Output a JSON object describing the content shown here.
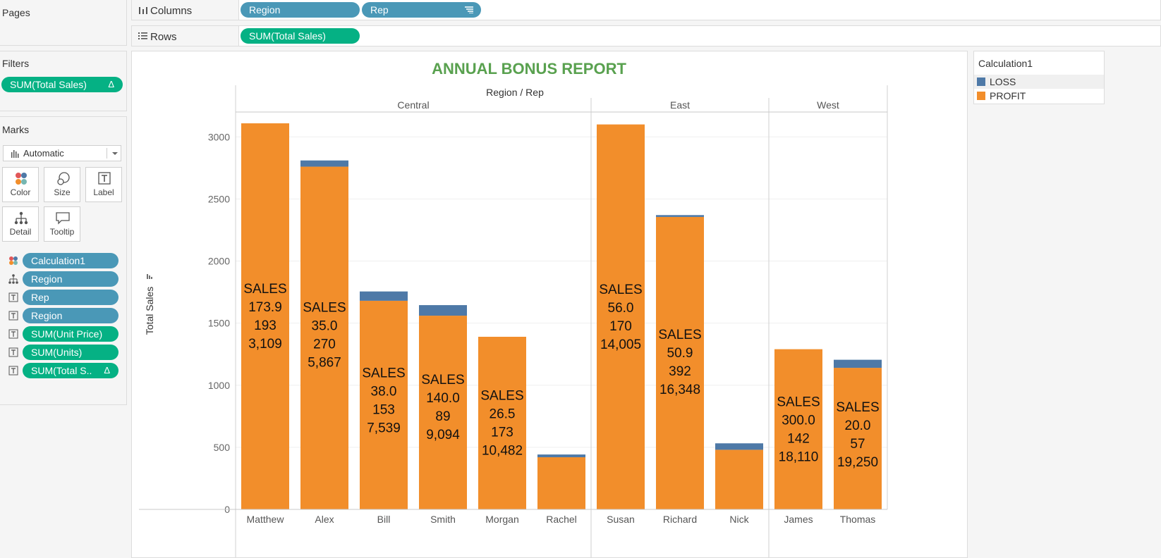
{
  "pages_panel": {
    "title": "Pages"
  },
  "columns_shelf": {
    "label": "Columns",
    "pills": [
      {
        "label": "Region",
        "kind": "dimension"
      },
      {
        "label": "Rep",
        "kind": "dimension",
        "icon": "sort-icon"
      }
    ]
  },
  "rows_shelf": {
    "label": "Rows",
    "pills": [
      {
        "label": "SUM(Total Sales)",
        "kind": "measure"
      }
    ]
  },
  "filters_panel": {
    "title": "Filters",
    "pills": [
      {
        "label": "SUM(Total Sales)",
        "badge": "Δ"
      }
    ]
  },
  "marks_panel": {
    "title": "Marks",
    "mark_type": "Automatic",
    "buttons": [
      {
        "label": "Color",
        "icon": "color-dots-icon"
      },
      {
        "label": "Size",
        "icon": "size-circles-icon"
      },
      {
        "label": "Label",
        "icon": "text-label-icon"
      },
      {
        "label": "Detail",
        "icon": "detail-hierarchy-icon"
      },
      {
        "label": "Tooltip",
        "icon": "tooltip-bubble-icon"
      }
    ],
    "fields": [
      {
        "label": "Calculation1",
        "kind": "dimension",
        "icon": "color-dots-icon"
      },
      {
        "label": "Region",
        "kind": "dimension",
        "icon": "detail-hierarchy-icon"
      },
      {
        "label": "Rep",
        "kind": "dimension",
        "icon": "text-label-icon"
      },
      {
        "label": "Region",
        "kind": "dimension",
        "icon": "text-label-icon"
      },
      {
        "label": "SUM(Unit Price)",
        "kind": "measure",
        "icon": "text-label-icon"
      },
      {
        "label": "SUM(Units)",
        "kind": "measure",
        "icon": "text-label-icon"
      },
      {
        "label": "SUM(Total S..",
        "kind": "measure",
        "icon": "text-label-icon",
        "badge": "Δ"
      }
    ]
  },
  "legend": {
    "title": "Calculation1",
    "items": [
      {
        "label": "LOSS",
        "color": "#4e79a7"
      },
      {
        "label": "PROFIT",
        "color": "#f28e2b"
      }
    ]
  },
  "colors": {
    "profit": "#f28e2b",
    "loss": "#4e79a7",
    "title": "#59a14f",
    "dimension_pill": "#4a98b7",
    "measure_pill": "#05b184"
  },
  "chart_data": {
    "type": "bar",
    "stacked": true,
    "title": "ANNUAL BONUS REPORT",
    "column_header": "Region / Rep",
    "ylabel": "Total Sales",
    "ylim": [
      0,
      3200
    ],
    "yticks": [
      0,
      500,
      1000,
      1500,
      2000,
      2500,
      3000
    ],
    "grid": true,
    "regions": [
      {
        "name": "Central",
        "reps": [
          "Matthew",
          "Alex",
          "Bill",
          "Smith",
          "Morgan",
          "Rachel"
        ]
      },
      {
        "name": "East",
        "reps": [
          "Susan",
          "Richard",
          "Nick"
        ]
      },
      {
        "name": "West",
        "reps": [
          "James",
          "Thomas"
        ]
      }
    ],
    "categories": [
      "Matthew",
      "Alex",
      "Bill",
      "Smith",
      "Morgan",
      "Rachel",
      "Susan",
      "Richard",
      "Nick",
      "James",
      "Thomas"
    ],
    "series": [
      {
        "name": "PROFIT",
        "values": [
          3109,
          2760,
          1680,
          1560,
          1390,
          420,
          3100,
          2355,
          480,
          1290,
          1140
        ]
      },
      {
        "name": "LOSS",
        "values": [
          0,
          50,
          75,
          85,
          0,
          22,
          0,
          15,
          52,
          0,
          65
        ]
      }
    ],
    "bar_labels": [
      [
        "SALES",
        "173.9",
        "193",
        "3,109"
      ],
      [
        "SALES",
        "35.0",
        "270",
        "5,867"
      ],
      [
        "SALES",
        "38.0",
        "153",
        "7,539"
      ],
      [
        "SALES",
        "140.0",
        "89",
        "9,094"
      ],
      [
        "SALES",
        "26.5",
        "173",
        "10,482"
      ],
      [],
      [
        "SALES",
        "56.0",
        "170",
        "14,005"
      ],
      [
        "SALES",
        "50.9",
        "392",
        "16,348"
      ],
      [],
      [
        "SALES",
        "300.0",
        "142",
        "18,110"
      ],
      [
        "SALES",
        "20.0",
        "57",
        "19,250"
      ]
    ]
  }
}
